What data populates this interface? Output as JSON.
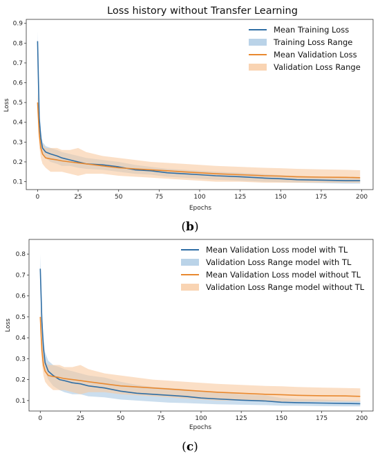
{
  "chart_data": [
    {
      "type": "line",
      "title": "Loss history without Transfer Learning",
      "xlabel": "Epochs",
      "ylabel": "Loss",
      "xlim": [
        -7,
        207
      ],
      "ylim": [
        0.06,
        0.92
      ],
      "xticks": [
        "0",
        "25",
        "50",
        "75",
        "100",
        "125",
        "150",
        "175",
        "200"
      ],
      "yticks": [
        "0.1",
        "0.2",
        "0.3",
        "0.4",
        "0.5",
        "0.6",
        "0.7",
        "0.8",
        "0.9"
      ],
      "legend_position": "top-right",
      "caption": "(b)",
      "series": [
        {
          "name": "Mean Training Loss",
          "color": "#2e6da4",
          "x": [
            0,
            1,
            2,
            3,
            5,
            8,
            12,
            15,
            20,
            25,
            30,
            40,
            50,
            60,
            70,
            80,
            90,
            100,
            110,
            125,
            140,
            150,
            160,
            175,
            190,
            199
          ],
          "values": [
            0.81,
            0.42,
            0.32,
            0.27,
            0.25,
            0.24,
            0.23,
            0.22,
            0.21,
            0.2,
            0.19,
            0.185,
            0.175,
            0.16,
            0.155,
            0.145,
            0.14,
            0.135,
            0.13,
            0.125,
            0.118,
            0.115,
            0.11,
            0.108,
            0.105,
            0.105
          ]
        },
        {
          "name": "Training Loss Range",
          "color": "#a9c8e2",
          "x": [
            0,
            1,
            2,
            3,
            5,
            8,
            12,
            15,
            20,
            25,
            30,
            40,
            50,
            60,
            70,
            80,
            90,
            100,
            110,
            125,
            140,
            150,
            160,
            175,
            190,
            199
          ],
          "lower": [
            0.76,
            0.38,
            0.28,
            0.24,
            0.22,
            0.2,
            0.19,
            0.18,
            0.18,
            0.17,
            0.165,
            0.16,
            0.15,
            0.14,
            0.135,
            0.125,
            0.12,
            0.115,
            0.11,
            0.105,
            0.1,
            0.098,
            0.095,
            0.093,
            0.09,
            0.09
          ],
          "upper": [
            0.86,
            0.47,
            0.36,
            0.3,
            0.28,
            0.27,
            0.26,
            0.25,
            0.24,
            0.23,
            0.22,
            0.21,
            0.2,
            0.185,
            0.175,
            0.165,
            0.16,
            0.155,
            0.15,
            0.145,
            0.138,
            0.133,
            0.128,
            0.125,
            0.12,
            0.12
          ]
        },
        {
          "name": "Mean Validation Loss",
          "color": "#e8882e",
          "x": [
            0,
            1,
            2,
            3,
            5,
            8,
            12,
            15,
            20,
            25,
            30,
            40,
            50,
            60,
            70,
            80,
            90,
            100,
            110,
            125,
            140,
            150,
            160,
            175,
            190,
            199
          ],
          "values": [
            0.5,
            0.34,
            0.27,
            0.24,
            0.22,
            0.215,
            0.21,
            0.205,
            0.2,
            0.195,
            0.19,
            0.18,
            0.17,
            0.165,
            0.16,
            0.155,
            0.15,
            0.145,
            0.14,
            0.135,
            0.13,
            0.128,
            0.125,
            0.123,
            0.122,
            0.12
          ]
        },
        {
          "name": "Validation Loss Range",
          "color": "#f8c9a0",
          "x": [
            0,
            1,
            2,
            3,
            5,
            8,
            12,
            15,
            20,
            25,
            30,
            40,
            50,
            60,
            70,
            80,
            90,
            100,
            110,
            125,
            140,
            150,
            160,
            175,
            190,
            199
          ],
          "lower": [
            0.45,
            0.28,
            0.22,
            0.19,
            0.17,
            0.15,
            0.15,
            0.15,
            0.14,
            0.13,
            0.14,
            0.14,
            0.13,
            0.125,
            0.12,
            0.115,
            0.11,
            0.105,
            0.1,
            0.1,
            0.095,
            0.095,
            0.095,
            0.095,
            0.095,
            0.095
          ],
          "upper": [
            0.55,
            0.4,
            0.33,
            0.29,
            0.27,
            0.27,
            0.27,
            0.26,
            0.26,
            0.27,
            0.25,
            0.23,
            0.22,
            0.21,
            0.2,
            0.195,
            0.19,
            0.185,
            0.18,
            0.175,
            0.17,
            0.168,
            0.165,
            0.162,
            0.16,
            0.158
          ]
        }
      ]
    },
    {
      "type": "line",
      "title": "",
      "xlabel": "Epochs",
      "ylabel": "Loss",
      "xlim": [
        -7,
        207
      ],
      "ylim": [
        0.05,
        0.87
      ],
      "xticks": [
        "0",
        "25",
        "50",
        "75",
        "100",
        "125",
        "150",
        "175",
        "200"
      ],
      "yticks": [
        "0.1",
        "0.2",
        "0.3",
        "0.4",
        "0.5",
        "0.6",
        "0.7",
        "0.8"
      ],
      "legend_position": "top-right",
      "caption": "(c)",
      "series": [
        {
          "name": "Mean Validation Loss model with TL",
          "color": "#2e6da4",
          "x": [
            0,
            1,
            2,
            3,
            5,
            8,
            12,
            15,
            20,
            25,
            30,
            40,
            50,
            60,
            70,
            80,
            90,
            100,
            110,
            125,
            140,
            150,
            160,
            175,
            190,
            199
          ],
          "values": [
            0.73,
            0.48,
            0.35,
            0.28,
            0.24,
            0.22,
            0.2,
            0.195,
            0.185,
            0.18,
            0.17,
            0.16,
            0.145,
            0.135,
            0.13,
            0.125,
            0.12,
            0.112,
            0.108,
            0.102,
            0.098,
            0.092,
            0.09,
            0.088,
            0.086,
            0.085
          ]
        },
        {
          "name": "Validation Loss Range model with TL",
          "color": "#a9c8e2",
          "x": [
            0,
            1,
            2,
            3,
            5,
            8,
            12,
            15,
            20,
            25,
            30,
            40,
            50,
            60,
            70,
            80,
            90,
            100,
            110,
            125,
            140,
            150,
            160,
            175,
            190,
            199
          ],
          "lower": [
            0.66,
            0.42,
            0.3,
            0.24,
            0.2,
            0.17,
            0.15,
            0.14,
            0.13,
            0.13,
            0.12,
            0.115,
            0.105,
            0.1,
            0.095,
            0.09,
            0.088,
            0.085,
            0.082,
            0.08,
            0.078,
            0.075,
            0.075,
            0.073,
            0.072,
            0.072
          ],
          "upper": [
            0.8,
            0.54,
            0.4,
            0.33,
            0.29,
            0.27,
            0.26,
            0.25,
            0.24,
            0.23,
            0.22,
            0.21,
            0.19,
            0.175,
            0.165,
            0.16,
            0.155,
            0.145,
            0.14,
            0.13,
            0.125,
            0.112,
            0.108,
            0.105,
            0.1,
            0.1
          ]
        },
        {
          "name": "Mean Validation Loss model without TL",
          "color": "#e8882e",
          "x": [
            0,
            1,
            2,
            3,
            5,
            8,
            12,
            15,
            20,
            25,
            30,
            40,
            50,
            60,
            70,
            80,
            90,
            100,
            110,
            125,
            140,
            150,
            160,
            175,
            190,
            199
          ],
          "values": [
            0.5,
            0.34,
            0.27,
            0.24,
            0.22,
            0.215,
            0.21,
            0.205,
            0.2,
            0.195,
            0.19,
            0.18,
            0.17,
            0.165,
            0.16,
            0.155,
            0.15,
            0.145,
            0.14,
            0.135,
            0.13,
            0.128,
            0.125,
            0.123,
            0.122,
            0.12
          ]
        },
        {
          "name": "Validation Loss Range model without TL",
          "color": "#f8c9a0",
          "x": [
            0,
            1,
            2,
            3,
            5,
            8,
            12,
            15,
            20,
            25,
            30,
            40,
            50,
            60,
            70,
            80,
            90,
            100,
            110,
            125,
            140,
            150,
            160,
            175,
            190,
            199
          ],
          "lower": [
            0.45,
            0.28,
            0.22,
            0.19,
            0.17,
            0.15,
            0.15,
            0.15,
            0.14,
            0.13,
            0.14,
            0.14,
            0.13,
            0.125,
            0.12,
            0.115,
            0.11,
            0.105,
            0.1,
            0.1,
            0.095,
            0.095,
            0.095,
            0.095,
            0.095,
            0.095
          ],
          "upper": [
            0.55,
            0.4,
            0.33,
            0.29,
            0.27,
            0.27,
            0.27,
            0.26,
            0.26,
            0.27,
            0.25,
            0.23,
            0.22,
            0.21,
            0.2,
            0.195,
            0.19,
            0.185,
            0.18,
            0.175,
            0.17,
            0.168,
            0.165,
            0.162,
            0.16,
            0.158
          ]
        }
      ]
    }
  ]
}
